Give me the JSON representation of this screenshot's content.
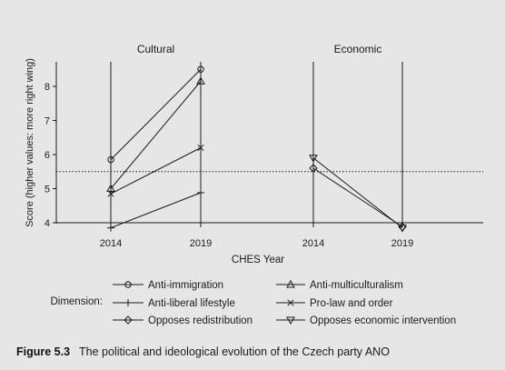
{
  "caption": {
    "figure_number": "Figure 5.3",
    "text": "The political and ideological evolution of the Czech party ANO"
  },
  "chart_data": {
    "type": "line",
    "ylabel": "Score (higher values: more right wing)",
    "xlabel": "CHES Year",
    "ylim": [
      4,
      9
    ],
    "y_ticks": [
      4,
      5,
      6,
      7,
      8
    ],
    "reference_line": 5.5,
    "grid": false,
    "legend_title": "Dimension:",
    "legend_placement": "bottom",
    "panels": [
      {
        "title": "Cultural",
        "x": [
          "2014",
          "2019"
        ],
        "series": [
          {
            "name": "Anti-immigration",
            "marker": "circle",
            "values": [
              5.85,
              8.5
            ]
          },
          {
            "name": "Anti-multiculturalism",
            "marker": "triangle-up",
            "values": [
              5.0,
              8.15
            ]
          },
          {
            "name": "Anti-liberal lifestyle",
            "marker": "plus",
            "values": [
              3.85,
              4.88
            ]
          },
          {
            "name": "Pro-law and order",
            "marker": "x",
            "values": [
              4.85,
              6.2
            ]
          }
        ]
      },
      {
        "title": "Economic",
        "x": [
          "2014",
          "2019"
        ],
        "series": [
          {
            "name": "Opposes redistribution",
            "marker": "diamond",
            "values": [
              5.6,
              3.88
            ]
          },
          {
            "name": "Opposes economic intervention",
            "marker": "triangle-down",
            "values": [
              5.9,
              3.85
            ]
          }
        ]
      }
    ],
    "legend": [
      {
        "name": "Anti-immigration",
        "marker": "circle"
      },
      {
        "name": "Anti-multiculturalism",
        "marker": "triangle-up"
      },
      {
        "name": "Anti-liberal lifestyle",
        "marker": "plus"
      },
      {
        "name": "Pro-law and order",
        "marker": "x"
      },
      {
        "name": "Opposes redistribution",
        "marker": "diamond"
      },
      {
        "name": "Opposes economic intervention",
        "marker": "triangle-down"
      }
    ]
  }
}
